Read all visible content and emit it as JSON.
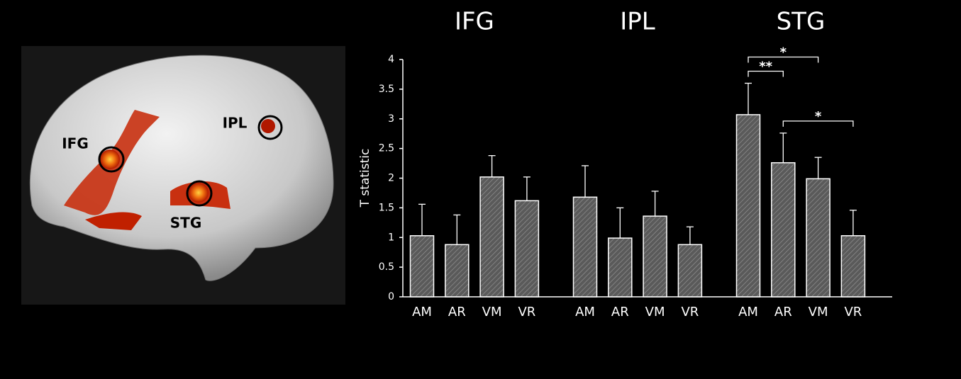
{
  "image": {
    "labels": [
      "IFG",
      "IPL",
      "STG"
    ]
  },
  "chart_data": {
    "type": "bar",
    "ylabel": "T statistic",
    "categories": [
      "AM",
      "AR",
      "VM",
      "VR"
    ],
    "groups": [
      {
        "name": "IFG",
        "values": [
          1.03,
          0.88,
          2.02,
          1.62
        ],
        "errors": [
          0.53,
          0.5,
          0.36,
          0.4
        ]
      },
      {
        "name": "IPL",
        "values": [
          1.68,
          0.99,
          1.36,
          0.88
        ],
        "errors": [
          0.53,
          0.51,
          0.42,
          0.3
        ]
      },
      {
        "name": "STG",
        "values": [
          3.07,
          2.26,
          1.99,
          1.03
        ],
        "errors": [
          0.53,
          0.5,
          0.36,
          0.43
        ]
      }
    ],
    "annotations": [
      {
        "text": "**",
        "group": 2,
        "from": 0,
        "to": 1
      },
      {
        "text": "*",
        "group": 2,
        "from": 0,
        "to": 2
      },
      {
        "text": "*",
        "group": 2,
        "from": 1,
        "to": 3
      }
    ],
    "color": "#5a5a5a",
    "ylim": [
      0,
      4
    ],
    "yticks": [
      0,
      0.5,
      1,
      1.5,
      2,
      2.5,
      3,
      3.5,
      4
    ]
  }
}
